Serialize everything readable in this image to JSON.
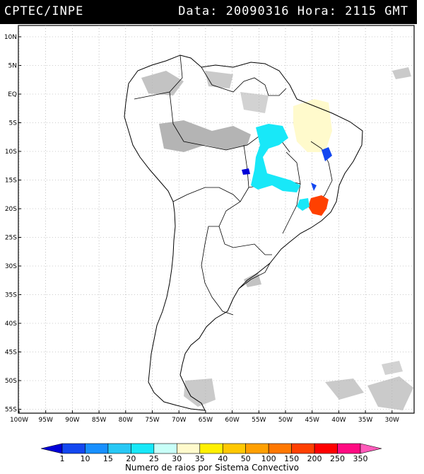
{
  "header": {
    "agency": "CPTEC/INPE",
    "datetime": "Data: 20090316 Hora: 2115 GMT"
  },
  "map": {
    "lat_labels": [
      "10N",
      "5N",
      "EQ",
      "5S",
      "10S",
      "15S",
      "20S",
      "25S",
      "30S",
      "35S",
      "40S",
      "45S",
      "50S",
      "55S"
    ],
    "lon_labels": [
      "100W",
      "95W",
      "90W",
      "85W",
      "80W",
      "75W",
      "70W",
      "65W",
      "60W",
      "55W",
      "50W",
      "45W",
      "40W",
      "35W",
      "30W"
    ]
  },
  "legend": {
    "caption": "Numero de raios por Sistema Convectivo",
    "labels": [
      "1",
      "10",
      "15",
      "20",
      "25",
      "30",
      "35",
      "40",
      "50",
      "100",
      "150",
      "200",
      "250",
      "350"
    ],
    "colors": [
      "#0000d8",
      "#1448f0",
      "#1890ff",
      "#28c8f5",
      "#18e8f8",
      "#c8fff8",
      "#fffacc",
      "#fff000",
      "#ffc800",
      "#ffa000",
      "#ff7800",
      "#ff4000",
      "#ff0000",
      "#ff0a82",
      "#ff5aba"
    ]
  },
  "map_overlays": {
    "convective_systems_color_meaning": "lightning count per convective system",
    "cloud_color": "#b4b4b4"
  }
}
